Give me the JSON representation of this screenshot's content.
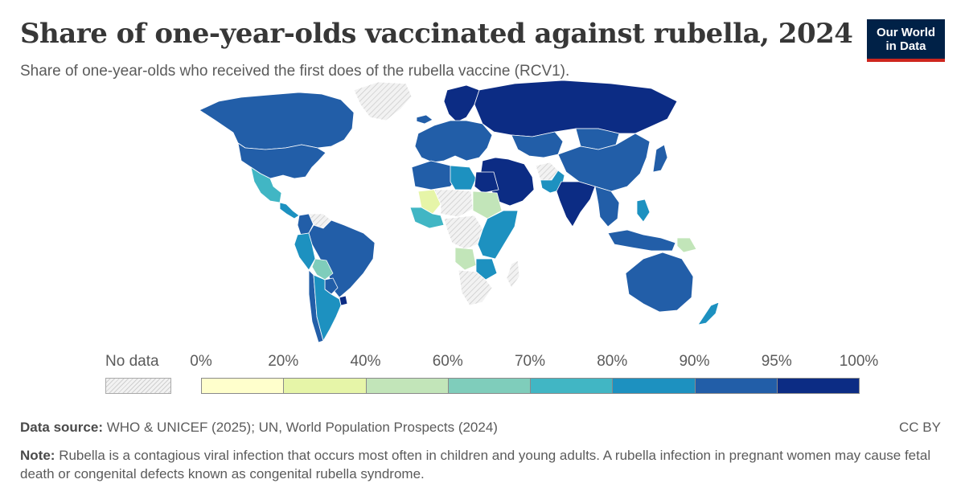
{
  "header": {
    "title": "Share of one-year-olds vaccinated against rubella, 2024",
    "subtitle": "Share of one-year-olds who received the first does of the rubella vaccine (RCV1).",
    "logo_line1": "Our World",
    "logo_line2": "in Data"
  },
  "legend": {
    "nodata_label": "No data",
    "ticks": [
      "0%",
      "20%",
      "40%",
      "60%",
      "70%",
      "80%",
      "90%",
      "95%",
      "100%"
    ],
    "bins": [
      {
        "from": 0,
        "to": 20,
        "color": "#ffffcc"
      },
      {
        "from": 20,
        "to": 40,
        "color": "#e6f5a8"
      },
      {
        "from": 40,
        "to": 60,
        "color": "#c2e5b9"
      },
      {
        "from": 60,
        "to": 70,
        "color": "#7fcdbb"
      },
      {
        "from": 70,
        "to": 80,
        "color": "#41b6c4"
      },
      {
        "from": 80,
        "to": 90,
        "color": "#1d91c0"
      },
      {
        "from": 90,
        "to": 95,
        "color": "#225ea8"
      },
      {
        "from": 95,
        "to": 100,
        "color": "#0c2c84"
      }
    ]
  },
  "map": {
    "regions": [
      {
        "name": "Greenland",
        "bin": "nodata"
      },
      {
        "name": "Canada",
        "bin": 6
      },
      {
        "name": "United States",
        "bin": 6
      },
      {
        "name": "Mexico",
        "bin": 4
      },
      {
        "name": "Central America",
        "bin": 5
      },
      {
        "name": "Venezuela",
        "bin": "nodata"
      },
      {
        "name": "Colombia",
        "bin": 6
      },
      {
        "name": "Brazil",
        "bin": 6
      },
      {
        "name": "Peru",
        "bin": 5
      },
      {
        "name": "Bolivia",
        "bin": 3
      },
      {
        "name": "Paraguay",
        "bin": 6
      },
      {
        "name": "Uruguay",
        "bin": 7
      },
      {
        "name": "Argentina",
        "bin": 5
      },
      {
        "name": "Chile",
        "bin": 6
      },
      {
        "name": "Europe",
        "bin": 6
      },
      {
        "name": "Scandinavia",
        "bin": 7
      },
      {
        "name": "Iceland",
        "bin": 6
      },
      {
        "name": "Russia",
        "bin": 7
      },
      {
        "name": "Kazakhstan",
        "bin": 6
      },
      {
        "name": "China",
        "bin": 6
      },
      {
        "name": "Mongolia",
        "bin": 6
      },
      {
        "name": "Japan",
        "bin": 6
      },
      {
        "name": "India",
        "bin": 7
      },
      {
        "name": "Middle East",
        "bin": 7
      },
      {
        "name": "Afghanistan",
        "bin": "nodata"
      },
      {
        "name": "Pakistan",
        "bin": 5
      },
      {
        "name": "Southeast Asia",
        "bin": 6
      },
      {
        "name": "Philippines",
        "bin": 5
      },
      {
        "name": "Indonesia",
        "bin": 6
      },
      {
        "name": "Papua New Guinea",
        "bin": 2
      },
      {
        "name": "Australia",
        "bin": 6
      },
      {
        "name": "New Zealand",
        "bin": 5
      },
      {
        "name": "North Africa",
        "bin": 6
      },
      {
        "name": "Egypt",
        "bin": 7
      },
      {
        "name": "Libya",
        "bin": 5
      },
      {
        "name": "Sahel",
        "bin": "nodata"
      },
      {
        "name": "Mali",
        "bin": 1
      },
      {
        "name": "Sudan",
        "bin": 2
      },
      {
        "name": "West Africa",
        "bin": 4
      },
      {
        "name": "Central Africa",
        "bin": "nodata"
      },
      {
        "name": "East Africa",
        "bin": 5
      },
      {
        "name": "Angola",
        "bin": 2
      },
      {
        "name": "Zambia",
        "bin": 5
      },
      {
        "name": "Southern Africa",
        "bin": "nodata"
      },
      {
        "name": "Madagascar",
        "bin": "nodata"
      }
    ]
  },
  "footer": {
    "source_label": "Data source:",
    "source_text": "WHO & UNICEF (2025); UN, World Population Prospects (2024)",
    "license": "CC BY",
    "note_label": "Note:",
    "note_text": "Rubella is a contagious viral infection that occurs most often in children and young adults. A rubella infection in pregnant women may cause fetal death or congenital defects known as congenital rubella syndrome."
  }
}
